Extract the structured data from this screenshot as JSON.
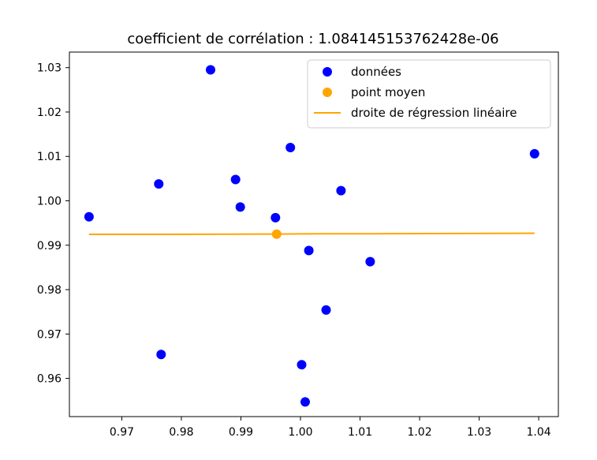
{
  "chart_data": {
    "type": "scatter",
    "title": "coefficient de corrélation : 1.084145153762428e-06",
    "xlabel": "",
    "ylabel": "",
    "xlim": [
      0.9612,
      1.0433
    ],
    "ylim": [
      0.9514,
      1.0335
    ],
    "grid": false,
    "legend_position": "top-right",
    "x_ticks": [
      "0.97",
      "0.98",
      "0.99",
      "1.00",
      "1.01",
      "1.02",
      "1.03",
      "1.04"
    ],
    "y_ticks": [
      "0.96",
      "0.97",
      "0.98",
      "0.99",
      "1.00",
      "1.01",
      "1.02",
      "1.03"
    ],
    "series": [
      {
        "name": "données",
        "kind": "scatter",
        "color": "#0000ff",
        "points": [
          [
            0.9645,
            0.9964
          ],
          [
            0.9762,
            1.0038
          ],
          [
            0.9766,
            0.9654
          ],
          [
            0.9849,
            1.0295
          ],
          [
            0.9891,
            1.0048
          ],
          [
            0.9899,
            0.9986
          ],
          [
            0.9958,
            0.9962
          ],
          [
            0.9983,
            1.012
          ],
          [
            1.0002,
            0.9631
          ],
          [
            1.0008,
            0.9547
          ],
          [
            1.0014,
            0.9888
          ],
          [
            1.0043,
            0.9754
          ],
          [
            1.0068,
            1.0023
          ],
          [
            1.0117,
            0.9863
          ],
          [
            1.0393,
            1.0106
          ]
        ]
      },
      {
        "name": "point moyen",
        "kind": "scatter",
        "color": "#ffa500",
        "points": [
          [
            0.996,
            0.9925
          ]
        ]
      },
      {
        "name": "droite de régression linéaire",
        "kind": "line",
        "color": "#ffa500",
        "points": [
          [
            0.9645,
            0.99245
          ],
          [
            0.9762,
            0.99245
          ],
          [
            0.9766,
            0.99245
          ],
          [
            0.9849,
            0.99246
          ],
          [
            0.9891,
            0.9925
          ],
          [
            0.9899,
            0.9925
          ],
          [
            0.9958,
            0.99252
          ],
          [
            0.9983,
            0.99253
          ],
          [
            1.0002,
            0.99255
          ],
          [
            1.0008,
            0.99255
          ],
          [
            1.0014,
            0.99255
          ],
          [
            1.0043,
            0.99257
          ],
          [
            1.0068,
            0.99257
          ],
          [
            1.0117,
            0.9926
          ],
          [
            1.0393,
            0.9927
          ]
        ]
      }
    ]
  }
}
